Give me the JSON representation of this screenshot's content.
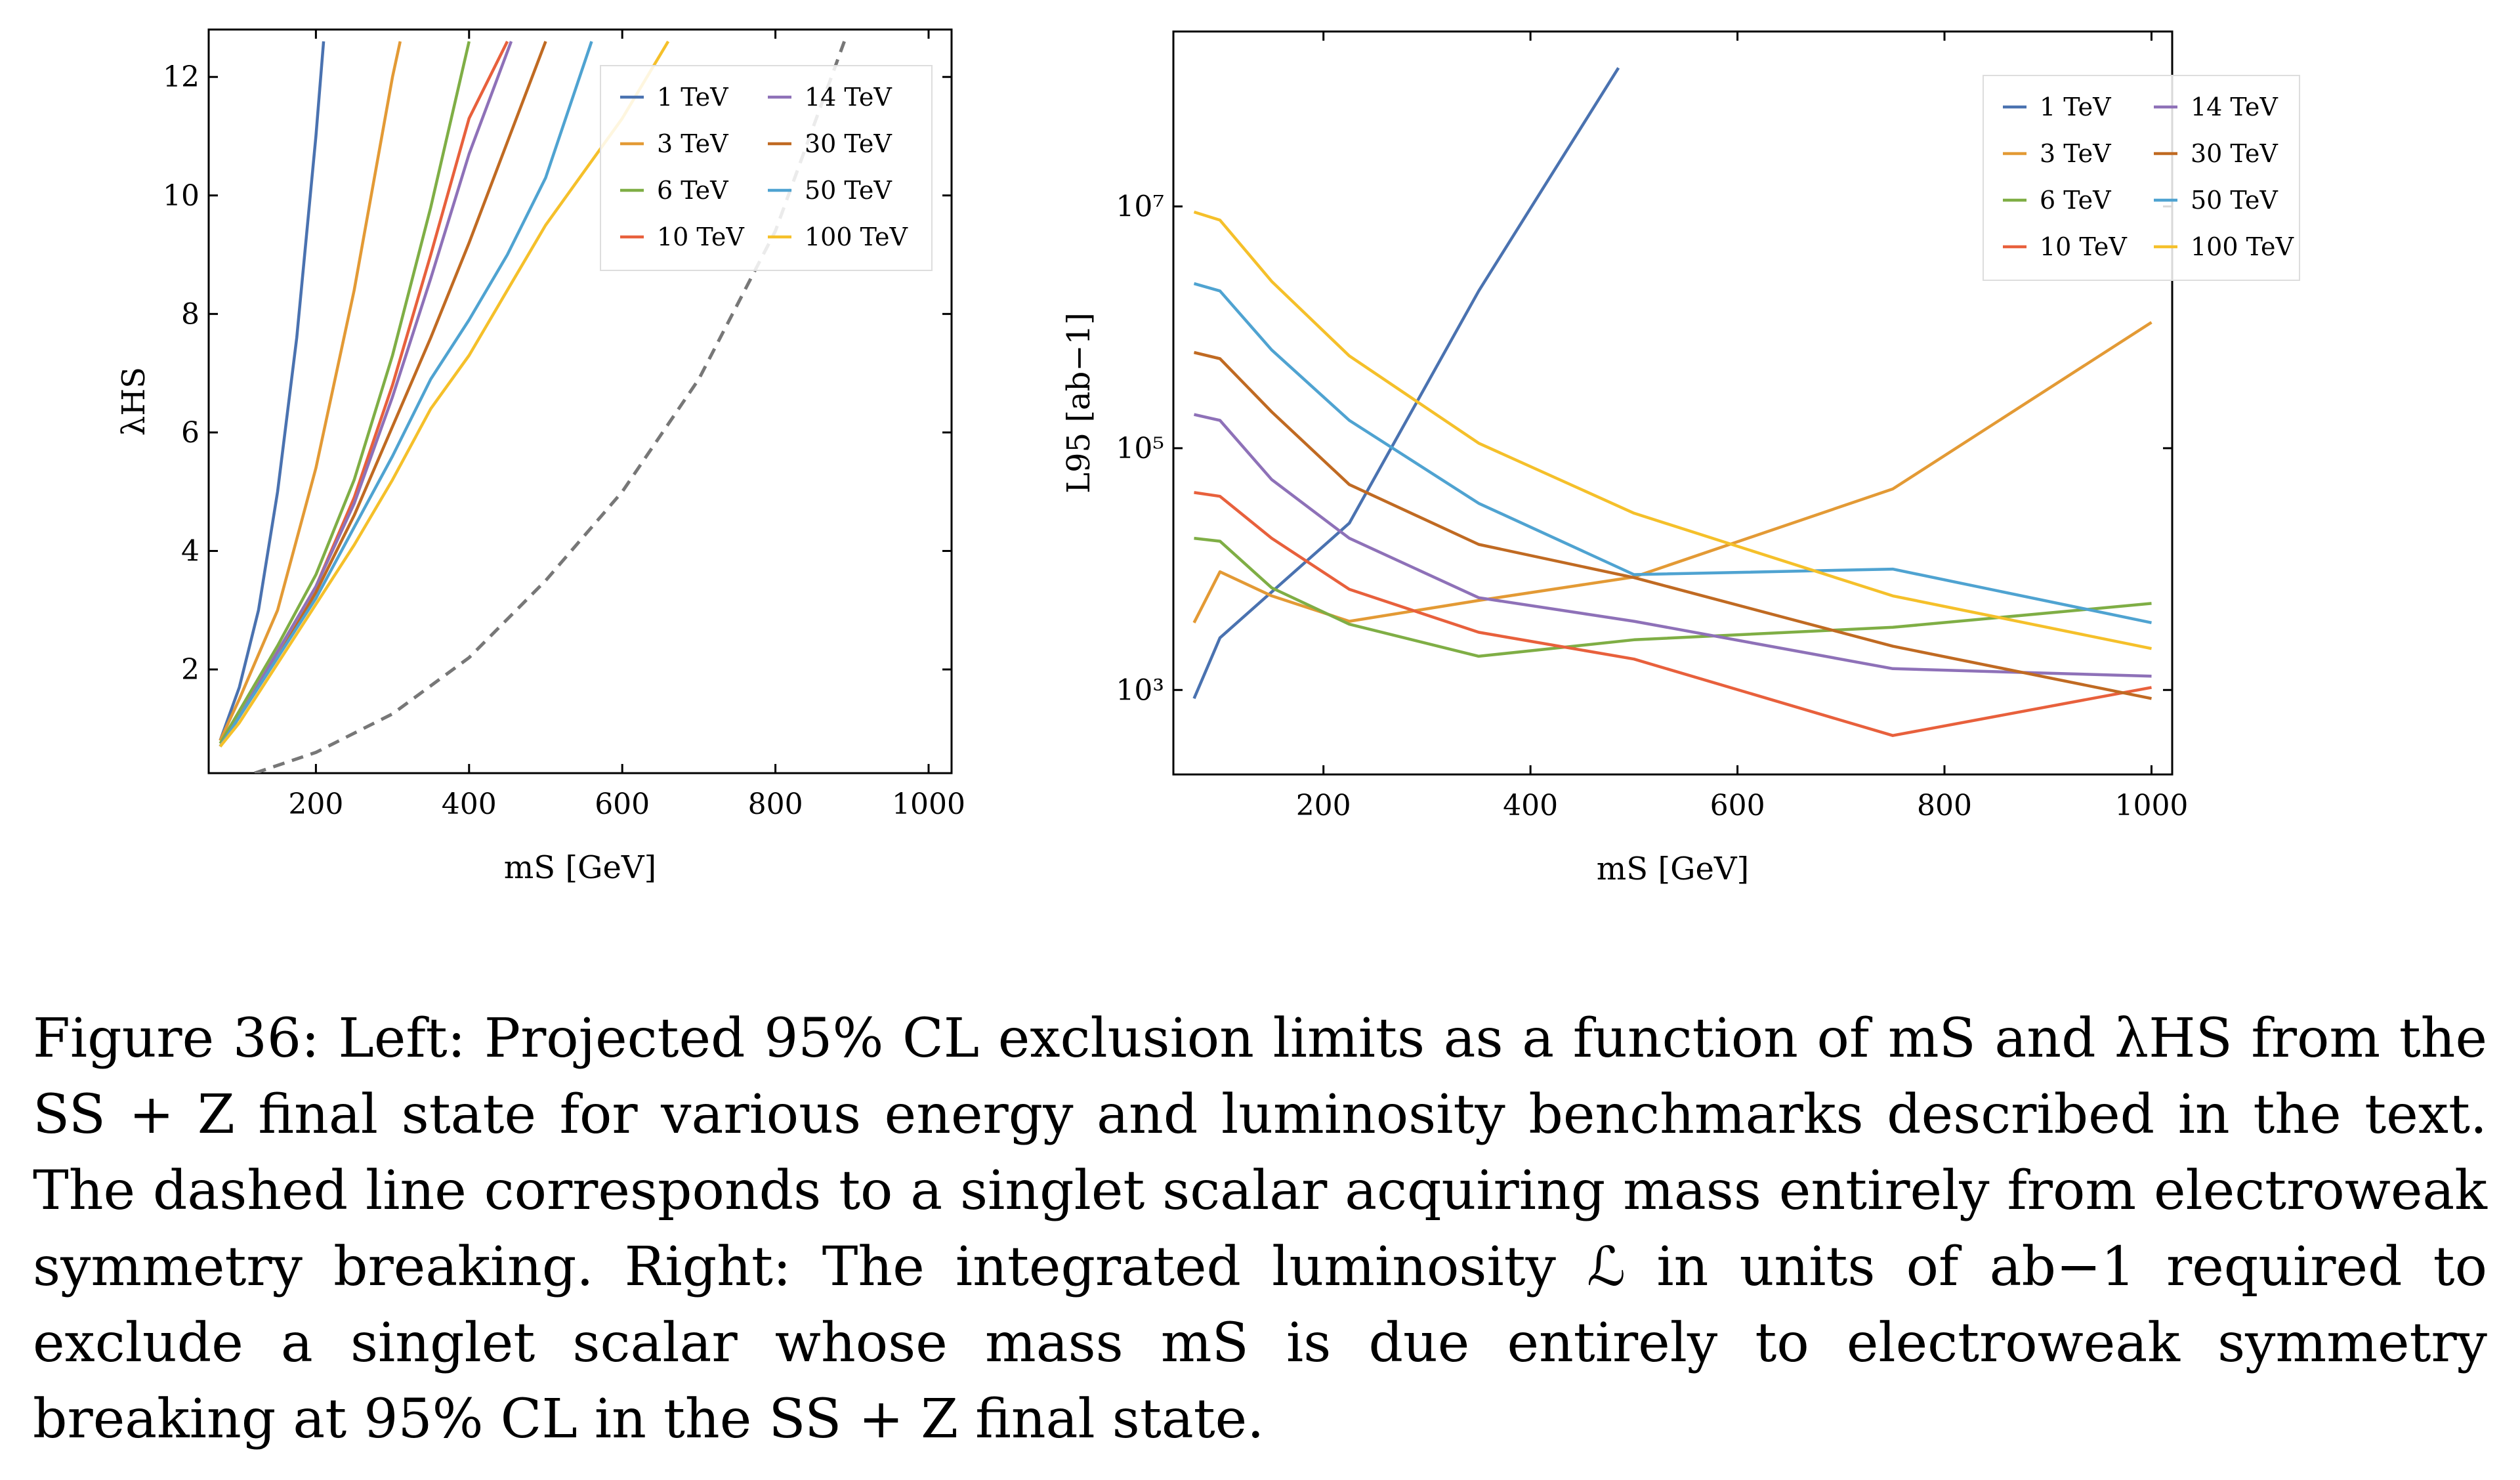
{
  "figure": {
    "caption": {
      "label": "Figure 36:",
      "text": "Left: Projected 95% CL exclusion limits as a function of mS and λHS from the SS + Z final state for various energy and luminosity benchmarks described in the text. The dashed line corresponds to a singlet scalar acquiring mass entirely from electroweak symmetry breaking. Right: The integrated luminosity ℒ in units of ab−1 required to exclude a singlet scalar whose mass mS is due entirely to electroweak symmetry breaking at 95% CL in the SS + Z final state."
    }
  },
  "colors": {
    "1 TeV": "#4a72b0",
    "3 TeV": "#e39a35",
    "6 TeV": "#7fae45",
    "10 TeV": "#e8603c",
    "14 TeV": "#8e71b8",
    "30 TeV": "#c06a22",
    "50 TeV": "#4fa3d1",
    "100 TeV": "#f5c02a",
    "dashed": "#777777"
  },
  "chart_data": [
    {
      "type": "line",
      "xlabel": "mS [GeV]",
      "ylabel": "λHS",
      "xlim": [
        60,
        1030
      ],
      "ylim": [
        0.25,
        12.8
      ],
      "xticks": [
        200,
        400,
        600,
        800,
        1000
      ],
      "yticks": [
        2,
        4,
        6,
        8,
        10,
        12
      ],
      "grid": false,
      "legend": "top-right",
      "legend_entries": [
        "1 TeV",
        "3 TeV",
        "6 TeV",
        "10 TeV",
        "14 TeV",
        "30 TeV",
        "50 TeV",
        "100 TeV"
      ],
      "series": [
        {
          "name": "1 TeV",
          "x": [
            75,
            100,
            125,
            150,
            175,
            200,
            210
          ],
          "y": [
            0.8,
            1.7,
            3.0,
            5.0,
            7.6,
            11.0,
            12.6
          ]
        },
        {
          "name": "3 TeV",
          "x": [
            75,
            100,
            150,
            200,
            250,
            300,
            310
          ],
          "y": [
            0.8,
            1.5,
            3.0,
            5.4,
            8.4,
            12.0,
            12.6
          ]
        },
        {
          "name": "6 TeV",
          "x": [
            75,
            100,
            150,
            200,
            250,
            300,
            350,
            400
          ],
          "y": [
            0.75,
            1.3,
            2.4,
            3.6,
            5.2,
            7.3,
            9.8,
            12.6
          ]
        },
        {
          "name": "10 TeV",
          "x": [
            75,
            100,
            150,
            200,
            250,
            300,
            350,
            400,
            450
          ],
          "y": [
            0.7,
            1.2,
            2.3,
            3.4,
            4.9,
            6.8,
            9.0,
            11.3,
            12.6
          ]
        },
        {
          "name": "14 TeV",
          "x": [
            75,
            100,
            150,
            200,
            250,
            300,
            350,
            400,
            455
          ],
          "y": [
            0.7,
            1.2,
            2.3,
            3.4,
            4.8,
            6.6,
            8.6,
            10.7,
            12.6
          ]
        },
        {
          "name": "30 TeV",
          "x": [
            75,
            100,
            150,
            200,
            250,
            300,
            350,
            400,
            450,
            500
          ],
          "y": [
            0.7,
            1.2,
            2.2,
            3.3,
            4.6,
            6.1,
            7.6,
            9.2,
            10.9,
            12.6
          ]
        },
        {
          "name": "50 TeV",
          "x": [
            75,
            100,
            150,
            200,
            250,
            300,
            350,
            400,
            450,
            500,
            560
          ],
          "y": [
            0.7,
            1.2,
            2.2,
            3.2,
            4.4,
            5.6,
            6.9,
            7.9,
            9.0,
            10.3,
            12.6
          ]
        },
        {
          "name": "100 TeV",
          "x": [
            75,
            100,
            150,
            200,
            250,
            300,
            350,
            400,
            450,
            500,
            550,
            600,
            660
          ],
          "y": [
            0.7,
            1.1,
            2.1,
            3.1,
            4.1,
            5.2,
            6.4,
            7.3,
            8.4,
            9.5,
            10.4,
            11.3,
            12.6
          ]
        },
        {
          "name": "",
          "x": [
            120,
            200,
            300,
            400,
            500,
            600,
            700,
            800,
            890
          ],
          "y": [
            0.25,
            0.6,
            1.25,
            2.2,
            3.5,
            5.0,
            6.9,
            9.4,
            12.6
          ]
        }
      ]
    },
    {
      "type": "line",
      "xlabel": "mS [GeV]",
      "ylabel": "L95 [ab−1]",
      "yscale": "log",
      "xlim": [
        55,
        1020
      ],
      "ylim": [
        200,
        280000000.0
      ],
      "xticks": [
        200,
        400,
        600,
        800,
        1000
      ],
      "yticks": [
        1000,
        100000,
        10000000
      ],
      "ytick_labels": [
        "10³",
        "10⁵",
        "10⁷"
      ],
      "grid": false,
      "legend": "top-right",
      "legend_entries": [
        "1 TeV",
        "3 TeV",
        "6 TeV",
        "10 TeV",
        "14 TeV",
        "30 TeV",
        "50 TeV",
        "100 TeV"
      ],
      "series": [
        {
          "name": "1 TeV",
          "x": [
            75,
            100,
            225,
            350,
            485
          ],
          "y": [
            850,
            2700,
            24000,
            2000000,
            140000000
          ]
        },
        {
          "name": "3 TeV",
          "x": [
            75,
            100,
            150,
            225,
            350,
            500,
            750,
            1000
          ],
          "y": [
            3600,
            9500,
            6000,
            3700,
            5500,
            8600,
            46000,
            1100000
          ]
        },
        {
          "name": "6 TeV",
          "x": [
            75,
            100,
            150,
            225,
            350,
            500,
            750,
            1000
          ],
          "y": [
            18000,
            17000,
            7000,
            3500,
            1900,
            2600,
            3300,
            5200
          ]
        },
        {
          "name": "10 TeV",
          "x": [
            75,
            100,
            150,
            225,
            350,
            500,
            750,
            1000
          ],
          "y": [
            43000,
            40000,
            18000,
            6800,
            3000,
            1800,
            420,
            1050
          ]
        },
        {
          "name": "14 TeV",
          "x": [
            75,
            100,
            150,
            225,
            350,
            500,
            750,
            1000
          ],
          "y": [
            190000,
            170000,
            55000,
            18000,
            5800,
            3700,
            1500,
            1300
          ]
        },
        {
          "name": "30 TeV",
          "x": [
            75,
            100,
            150,
            225,
            350,
            500,
            750,
            1000
          ],
          "y": [
            620000,
            550000,
            200000,
            50000,
            16000,
            8500,
            2300,
            850
          ]
        },
        {
          "name": "50 TeV",
          "x": [
            75,
            100,
            150,
            225,
            350,
            500,
            750,
            1000
          ],
          "y": [
            2300000,
            2000000,
            650000,
            170000,
            35000,
            9000,
            10000,
            3600
          ]
        },
        {
          "name": "100 TeV",
          "x": [
            75,
            100,
            150,
            225,
            350,
            500,
            750,
            1000
          ],
          "y": [
            9000000,
            7700000,
            2400000,
            580000,
            110000,
            29000,
            6000,
            2200
          ]
        }
      ]
    }
  ]
}
